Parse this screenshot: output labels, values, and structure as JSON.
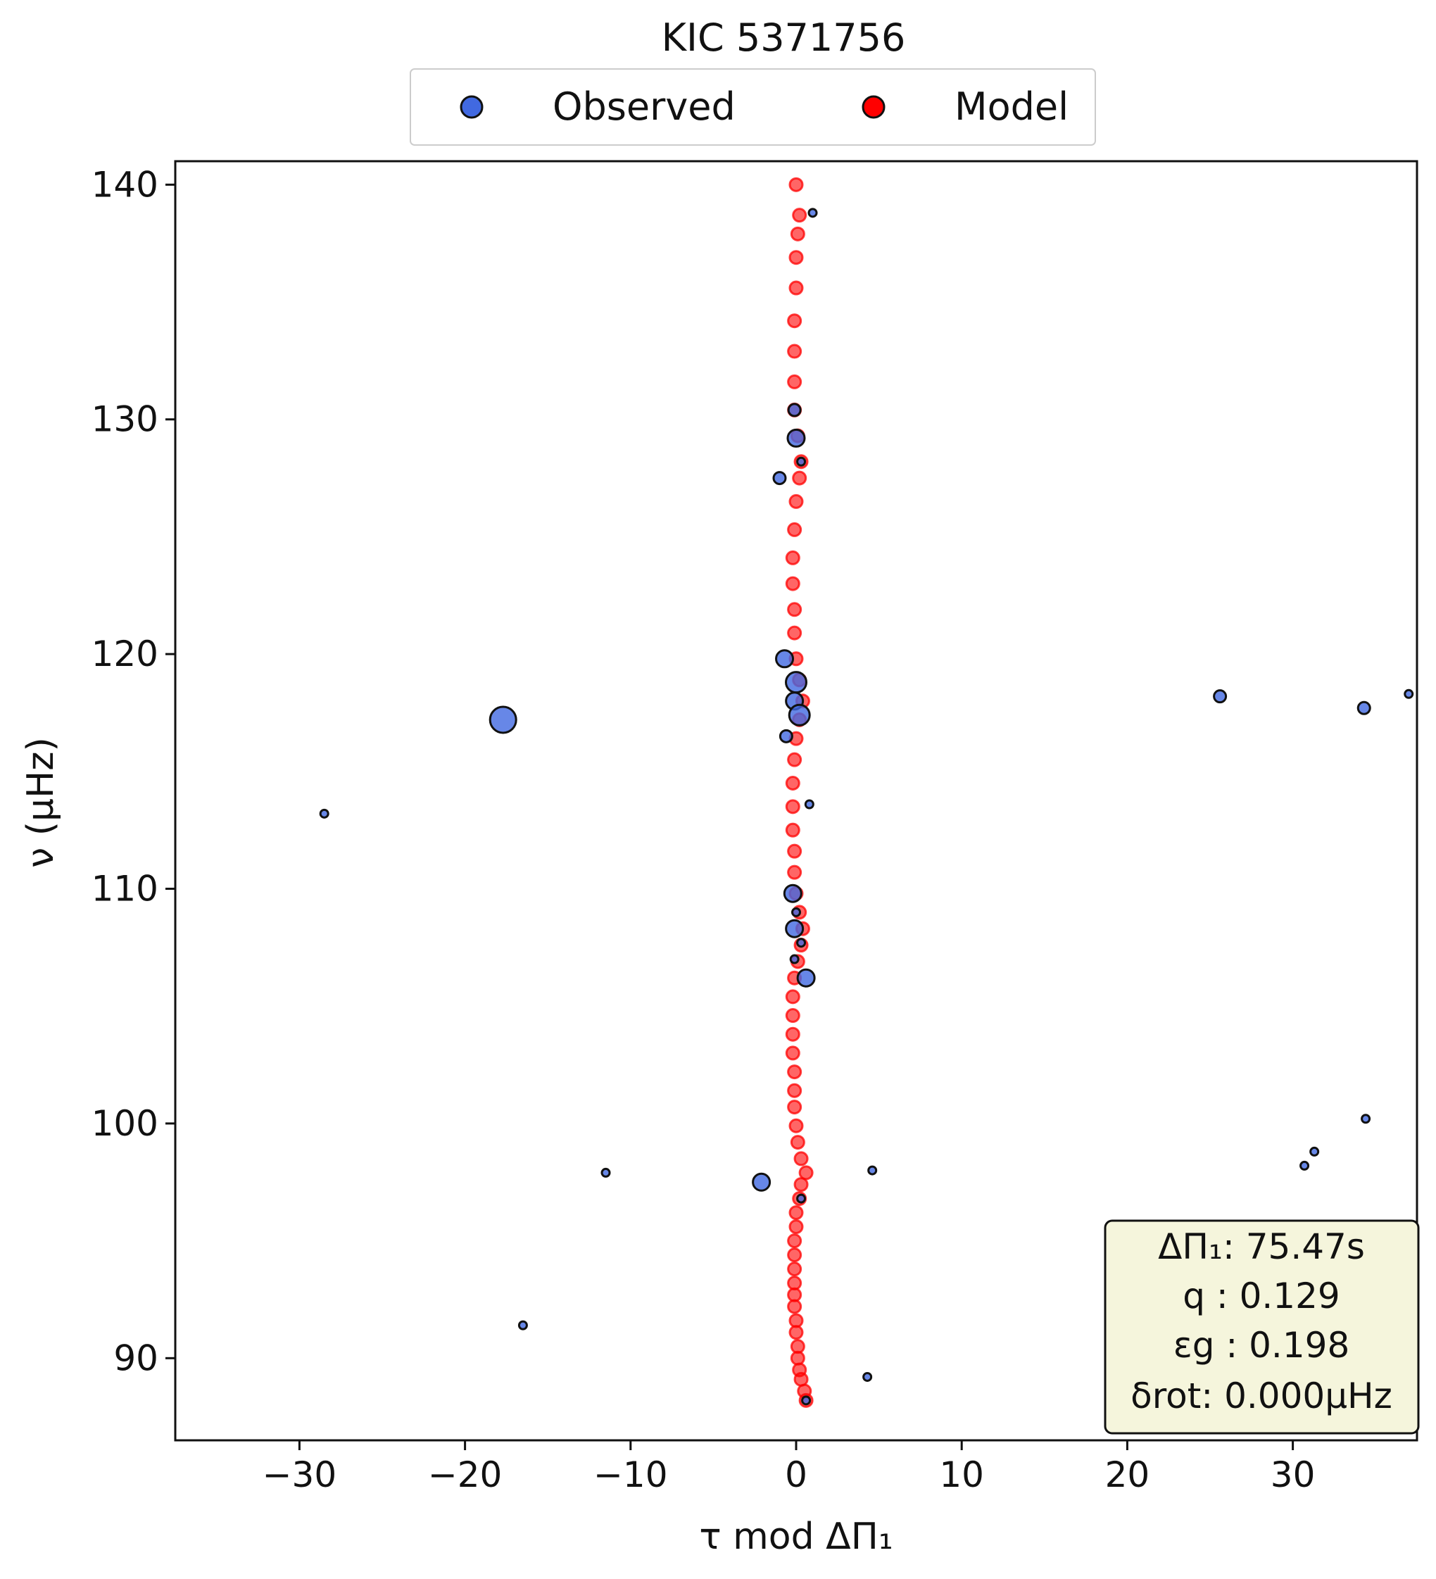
{
  "chart_data": {
    "type": "scatter",
    "title": "KIC 5371756",
    "xlabel": "τ mod ΔΠ₁",
    "ylabel": "ν (μHz)",
    "xlim": [
      -37.5,
      37.5
    ],
    "ylim": [
      86.5,
      141
    ],
    "x_ticks": [
      -30,
      -20,
      -10,
      0,
      10,
      20,
      30
    ],
    "x_tick_labels": [
      "−30",
      "−20",
      "−10",
      "0",
      "10",
      "20",
      "30"
    ],
    "y_ticks": [
      90,
      100,
      110,
      120,
      130,
      140
    ],
    "y_tick_labels": [
      "90",
      "100",
      "110",
      "120",
      "130",
      "140"
    ],
    "grid": false,
    "legend": {
      "placement": "top-center",
      "entries": [
        "Observed",
        "Model"
      ]
    },
    "colors": {
      "observed": "#4169e1",
      "model": "#ff0000",
      "edge": "#111111",
      "infobox_bg": "#f5f5dc"
    },
    "series": [
      {
        "name": "Observed",
        "points": [
          {
            "x": 1.0,
            "y": 138.8,
            "s": 1
          },
          {
            "x": -0.1,
            "y": 130.4,
            "s": 2
          },
          {
            "x": 0.0,
            "y": 129.2,
            "s": 3
          },
          {
            "x": 0.3,
            "y": 128.2,
            "s": 1
          },
          {
            "x": -1.0,
            "y": 127.5,
            "s": 2
          },
          {
            "x": -0.7,
            "y": 119.8,
            "s": 3
          },
          {
            "x": 0.0,
            "y": 118.8,
            "s": 4
          },
          {
            "x": -0.1,
            "y": 118.0,
            "s": 3
          },
          {
            "x": 0.2,
            "y": 117.4,
            "s": 4
          },
          {
            "x": -17.7,
            "y": 117.2,
            "s": 6
          },
          {
            "x": -0.6,
            "y": 116.5,
            "s": 2
          },
          {
            "x": 0.8,
            "y": 113.6,
            "s": 1
          },
          {
            "x": -28.5,
            "y": 113.2,
            "s": 1
          },
          {
            "x": -0.2,
            "y": 109.8,
            "s": 3
          },
          {
            "x": 0.0,
            "y": 109.0,
            "s": 1
          },
          {
            "x": -0.1,
            "y": 108.3,
            "s": 3
          },
          {
            "x": 0.3,
            "y": 107.7,
            "s": 1
          },
          {
            "x": -0.1,
            "y": 107.0,
            "s": 1
          },
          {
            "x": 0.6,
            "y": 106.2,
            "s": 3
          },
          {
            "x": 25.6,
            "y": 118.2,
            "s": 2
          },
          {
            "x": 34.3,
            "y": 117.7,
            "s": 2
          },
          {
            "x": 37.0,
            "y": 118.3,
            "s": 1
          },
          {
            "x": 34.4,
            "y": 100.2,
            "s": 1
          },
          {
            "x": 31.3,
            "y": 98.8,
            "s": 1
          },
          {
            "x": 30.7,
            "y": 98.2,
            "s": 1
          },
          {
            "x": -11.5,
            "y": 97.9,
            "s": 1
          },
          {
            "x": 4.6,
            "y": 98.0,
            "s": 1
          },
          {
            "x": -2.1,
            "y": 97.5,
            "s": 3
          },
          {
            "x": 0.3,
            "y": 96.8,
            "s": 1
          },
          {
            "x": -16.5,
            "y": 91.4,
            "s": 1
          },
          {
            "x": 4.3,
            "y": 89.2,
            "s": 1
          },
          {
            "x": 0.6,
            "y": 88.2,
            "s": 1
          }
        ]
      },
      {
        "name": "Model",
        "points": [
          {
            "x": 0.0,
            "y": 140.0
          },
          {
            "x": 0.2,
            "y": 138.7
          },
          {
            "x": 0.1,
            "y": 137.9
          },
          {
            "x": 0.0,
            "y": 136.9
          },
          {
            "x": 0.0,
            "y": 135.6
          },
          {
            "x": -0.1,
            "y": 134.2
          },
          {
            "x": -0.1,
            "y": 132.9
          },
          {
            "x": -0.1,
            "y": 131.6
          },
          {
            "x": -0.1,
            "y": 130.4
          },
          {
            "x": 0.1,
            "y": 129.3
          },
          {
            "x": 0.3,
            "y": 128.2
          },
          {
            "x": 0.2,
            "y": 127.5
          },
          {
            "x": 0.0,
            "y": 126.5
          },
          {
            "x": -0.1,
            "y": 125.3
          },
          {
            "x": -0.2,
            "y": 124.1
          },
          {
            "x": -0.2,
            "y": 123.0
          },
          {
            "x": -0.1,
            "y": 121.9
          },
          {
            "x": -0.1,
            "y": 120.9
          },
          {
            "x": 0.0,
            "y": 119.8
          },
          {
            "x": 0.2,
            "y": 118.9
          },
          {
            "x": 0.4,
            "y": 118.0
          },
          {
            "x": 0.2,
            "y": 117.2
          },
          {
            "x": 0.0,
            "y": 116.4
          },
          {
            "x": -0.1,
            "y": 115.5
          },
          {
            "x": -0.2,
            "y": 114.5
          },
          {
            "x": -0.2,
            "y": 113.5
          },
          {
            "x": -0.2,
            "y": 112.5
          },
          {
            "x": -0.1,
            "y": 111.6
          },
          {
            "x": -0.1,
            "y": 110.7
          },
          {
            "x": 0.0,
            "y": 109.8
          },
          {
            "x": 0.2,
            "y": 109.0
          },
          {
            "x": 0.4,
            "y": 108.3
          },
          {
            "x": 0.3,
            "y": 107.6
          },
          {
            "x": 0.1,
            "y": 106.9
          },
          {
            "x": -0.1,
            "y": 106.2
          },
          {
            "x": -0.2,
            "y": 105.4
          },
          {
            "x": -0.2,
            "y": 104.6
          },
          {
            "x": -0.2,
            "y": 103.8
          },
          {
            "x": -0.2,
            "y": 103.0
          },
          {
            "x": -0.1,
            "y": 102.2
          },
          {
            "x": -0.1,
            "y": 101.4
          },
          {
            "x": -0.1,
            "y": 100.7
          },
          {
            "x": 0.0,
            "y": 99.9
          },
          {
            "x": 0.1,
            "y": 99.2
          },
          {
            "x": 0.3,
            "y": 98.5
          },
          {
            "x": 0.6,
            "y": 97.9
          },
          {
            "x": 0.3,
            "y": 97.4
          },
          {
            "x": 0.2,
            "y": 96.8
          },
          {
            "x": 0.0,
            "y": 96.2
          },
          {
            "x": 0.0,
            "y": 95.6
          },
          {
            "x": -0.1,
            "y": 95.0
          },
          {
            "x": -0.1,
            "y": 94.4
          },
          {
            "x": -0.1,
            "y": 93.8
          },
          {
            "x": -0.1,
            "y": 93.2
          },
          {
            "x": -0.1,
            "y": 92.7
          },
          {
            "x": -0.1,
            "y": 92.2
          },
          {
            "x": 0.0,
            "y": 91.6
          },
          {
            "x": 0.0,
            "y": 91.1
          },
          {
            "x": 0.1,
            "y": 90.5
          },
          {
            "x": 0.1,
            "y": 90.0
          },
          {
            "x": 0.2,
            "y": 89.5
          },
          {
            "x": 0.3,
            "y": 89.1
          },
          {
            "x": 0.5,
            "y": 88.6
          },
          {
            "x": 0.6,
            "y": 88.2
          }
        ]
      }
    ],
    "info_box": {
      "placement": "bottom-right",
      "lines": [
        "ΔΠ₁: 75.47s",
        "q :  0.129",
        "εg : 0.198",
        "δrot: 0.000μHz"
      ]
    }
  }
}
